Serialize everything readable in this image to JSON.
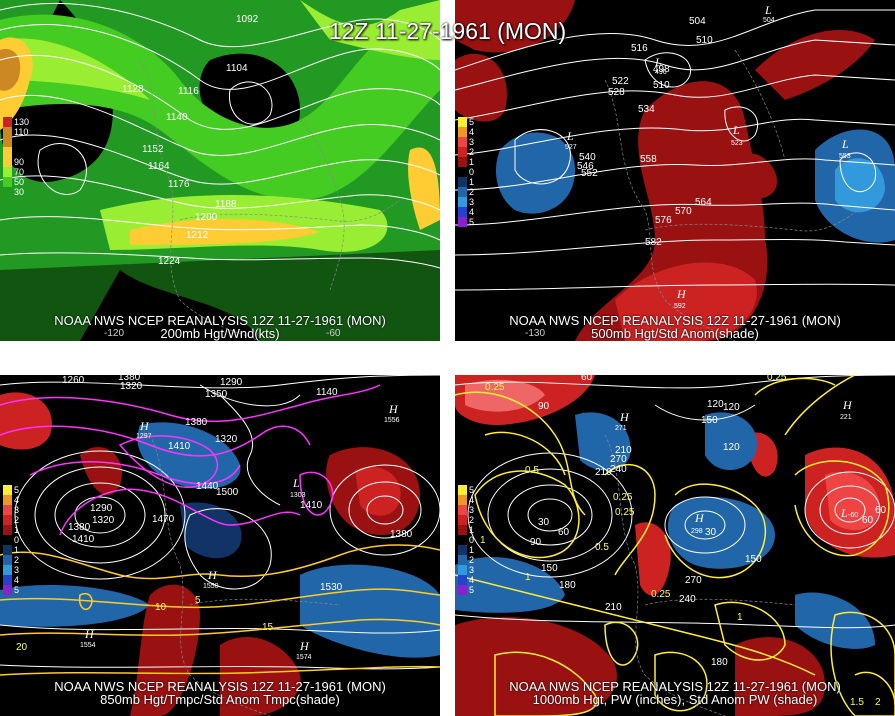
{
  "main_title": "12Z 11-27-1961 (MON)",
  "panels": {
    "tl": {
      "caption_line1": "NOAA NWS NCEP REANALYSIS 12Z 11-27-1961 (MON)",
      "caption_line2": "200mb Hgt/Wnd(kts)",
      "legend": [
        {
          "label": "130",
          "color": "#cc2222"
        },
        {
          "label": "110",
          "color": "#cc8822"
        },
        {
          "label": "90",
          "color": "#ffcc33"
        },
        {
          "label": "70",
          "color": "#99ee33"
        },
        {
          "label": "50",
          "color": "#44cc22"
        },
        {
          "label": "30",
          "color": "#229922"
        }
      ],
      "contour_labels": [
        "1092",
        "1104",
        "1128",
        "1116",
        "1140",
        "1152",
        "1164",
        "1176",
        "1188",
        "1200",
        "1212",
        "1224"
      ],
      "lon_labels": [
        "-120",
        "-60"
      ]
    },
    "tr": {
      "caption_line1": "NOAA NWS NCEP REANALYSIS 12Z 11-27-1961 (MON)",
      "caption_line2": "500mb Hgt/Std Anom(shade)",
      "legend": [
        {
          "label": "5",
          "color": "#ffee33"
        },
        {
          "label": "4",
          "color": "#ee9922"
        },
        {
          "label": "3",
          "color": "#ee4444"
        },
        {
          "label": "2",
          "color": "#cc2222"
        },
        {
          "label": "1",
          "color": "#991111"
        },
        {
          "label": "0",
          "color": "#000000"
        },
        {
          "label": "1",
          "color": "#113366"
        },
        {
          "label": "2",
          "color": "#2266aa"
        },
        {
          "label": "3",
          "color": "#3399dd"
        },
        {
          "label": "4",
          "color": "#2244cc"
        },
        {
          "label": "5",
          "color": "#8822cc"
        }
      ],
      "contour_labels": [
        "504",
        "510",
        "516",
        "498",
        "522",
        "528",
        "510",
        "534",
        "540",
        "546",
        "552",
        "558",
        "564",
        "570",
        "576",
        "582"
      ],
      "highs_lows": [
        {
          "letter": "L",
          "value": "527"
        },
        {
          "letter": "L",
          "value": "496"
        },
        {
          "letter": "L",
          "value": "523"
        },
        {
          "letter": "L",
          "value": "553"
        },
        {
          "letter": "H",
          "value": "592"
        },
        {
          "letter": "L",
          "value": "504"
        }
      ],
      "lon_labels": [
        "-130"
      ]
    },
    "bl": {
      "caption_line1": "NOAA NWS NCEP REANALYSIS 12Z 11-27-1961 (MON)",
      "caption_line2": "850mb Hgt/Tmpc/Std Anom Tmpc(shade)",
      "contour_labels": [
        "1260",
        "1380",
        "1320",
        "1350",
        "1380",
        "1320",
        "1290",
        "1410",
        "1440",
        "1500",
        "1470",
        "1290",
        "1320",
        "1380",
        "1410",
        "1530",
        "1140",
        "1410",
        "1380"
      ],
      "temp_labels": [
        "10",
        "5",
        "15",
        "20"
      ],
      "highs_lows": [
        {
          "letter": "H",
          "value": "1297"
        },
        {
          "letter": "H",
          "value": "1556"
        },
        {
          "letter": "L",
          "value": "1303"
        },
        {
          "letter": "H",
          "value": "1550"
        },
        {
          "letter": "H",
          "value": "1554"
        },
        {
          "letter": "H",
          "value": "1574"
        }
      ]
    },
    "br": {
      "caption_line1": "NOAA NWS NCEP REANALYSIS 12Z 11-27-1961 (MON)",
      "caption_line2": "1000mb Hgt, PW (inches), Std Anom PW (shade)",
      "contour_labels": [
        "60",
        "120",
        "150",
        "90",
        "210",
        "270",
        "240",
        "120",
        "30",
        "60",
        "90",
        "150",
        "180",
        "210",
        "270",
        "240",
        "180",
        "210",
        "30",
        "60",
        "150",
        "60",
        "120"
      ],
      "pw_labels": [
        "0.25",
        "0.5",
        "0.25",
        "0.5",
        "0.25",
        "1",
        "1",
        "0.25",
        "0.25",
        "1",
        "1.5",
        "2"
      ],
      "highs_lows": [
        {
          "letter": "H",
          "value": "271"
        },
        {
          "letter": "H",
          "value": "298"
        },
        {
          "letter": "L",
          "value": "-60"
        },
        {
          "letter": "H",
          "value": "221"
        }
      ]
    }
  }
}
